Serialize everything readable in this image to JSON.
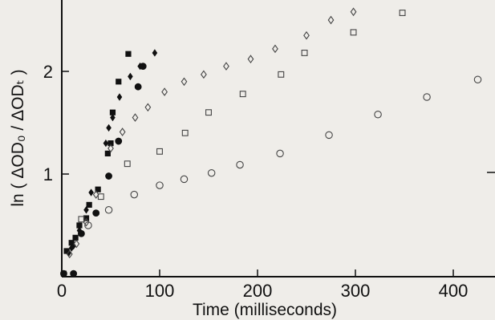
{
  "chart_data": {
    "type": "scatter",
    "title": "",
    "xlabel": "Time (milliseconds)",
    "ylabel": "ln ( ΔOD₀ / ΔODₜ )",
    "xlim": [
      0,
      440
    ],
    "ylim": [
      0,
      2.6
    ],
    "xticks": [
      0,
      100,
      200,
      300,
      400
    ],
    "yticks": [
      1,
      2
    ],
    "xtick_labels": [
      "0",
      "100",
      "200",
      "300",
      "400"
    ],
    "ytick_labels": [
      "1",
      "2"
    ],
    "grid": false,
    "legend": "none",
    "series": [
      {
        "marker": "filled-square",
        "points": [
          [
            2,
            0.03
          ],
          [
            5,
            0.25
          ],
          [
            10,
            0.33
          ],
          [
            14,
            0.38
          ],
          [
            18,
            0.5
          ],
          [
            25,
            0.57
          ],
          [
            28,
            0.7
          ],
          [
            37,
            0.85
          ],
          [
            47,
            1.2
          ],
          [
            50,
            1.3
          ],
          [
            52,
            1.6
          ],
          [
            58,
            1.9
          ],
          [
            68,
            2.17
          ]
        ]
      },
      {
        "marker": "filled-diamond",
        "points": [
          [
            7,
            0.23
          ],
          [
            10,
            0.28
          ],
          [
            12,
            0.3
          ],
          [
            18,
            0.45
          ],
          [
            25,
            0.65
          ],
          [
            30,
            0.82
          ],
          [
            45,
            1.3
          ],
          [
            48,
            1.45
          ],
          [
            52,
            1.55
          ],
          [
            59,
            1.75
          ],
          [
            70,
            1.95
          ],
          [
            80,
            2.05
          ],
          [
            95,
            2.18
          ]
        ]
      },
      {
        "marker": "filled-circle",
        "points": [
          [
            2,
            0.03
          ],
          [
            12,
            0.03
          ],
          [
            20,
            0.42
          ],
          [
            35,
            0.62
          ],
          [
            48,
            0.98
          ],
          [
            58,
            1.32
          ],
          [
            78,
            1.85
          ],
          [
            83,
            2.05
          ]
        ]
      },
      {
        "marker": "open-diamond",
        "points": [
          [
            8,
            0.22
          ],
          [
            15,
            0.32
          ],
          [
            25,
            0.53
          ],
          [
            35,
            0.8
          ],
          [
            50,
            1.25
          ],
          [
            62,
            1.41
          ],
          [
            75,
            1.55
          ],
          [
            88,
            1.65
          ],
          [
            105,
            1.8
          ],
          [
            125,
            1.9
          ],
          [
            145,
            1.97
          ],
          [
            168,
            2.05
          ],
          [
            193,
            2.12
          ],
          [
            218,
            2.22
          ],
          [
            250,
            2.35
          ],
          [
            275,
            2.5
          ],
          [
            298,
            2.58
          ]
        ]
      },
      {
        "marker": "open-square",
        "points": [
          [
            20,
            0.56
          ],
          [
            40,
            0.78
          ],
          [
            67,
            1.1
          ],
          [
            100,
            1.22
          ],
          [
            126,
            1.4
          ],
          [
            150,
            1.6
          ],
          [
            185,
            1.78
          ],
          [
            224,
            1.97
          ],
          [
            248,
            2.18
          ],
          [
            298,
            2.38
          ],
          [
            348,
            2.57
          ]
        ]
      },
      {
        "marker": "open-circle",
        "points": [
          [
            27,
            0.5
          ],
          [
            48,
            0.65
          ],
          [
            74,
            0.8
          ],
          [
            100,
            0.89
          ],
          [
            125,
            0.95
          ],
          [
            153,
            1.01
          ],
          [
            182,
            1.09
          ],
          [
            223,
            1.2
          ],
          [
            273,
            1.38
          ],
          [
            323,
            1.58
          ],
          [
            373,
            1.75
          ],
          [
            425,
            1.92
          ]
        ]
      }
    ]
  }
}
